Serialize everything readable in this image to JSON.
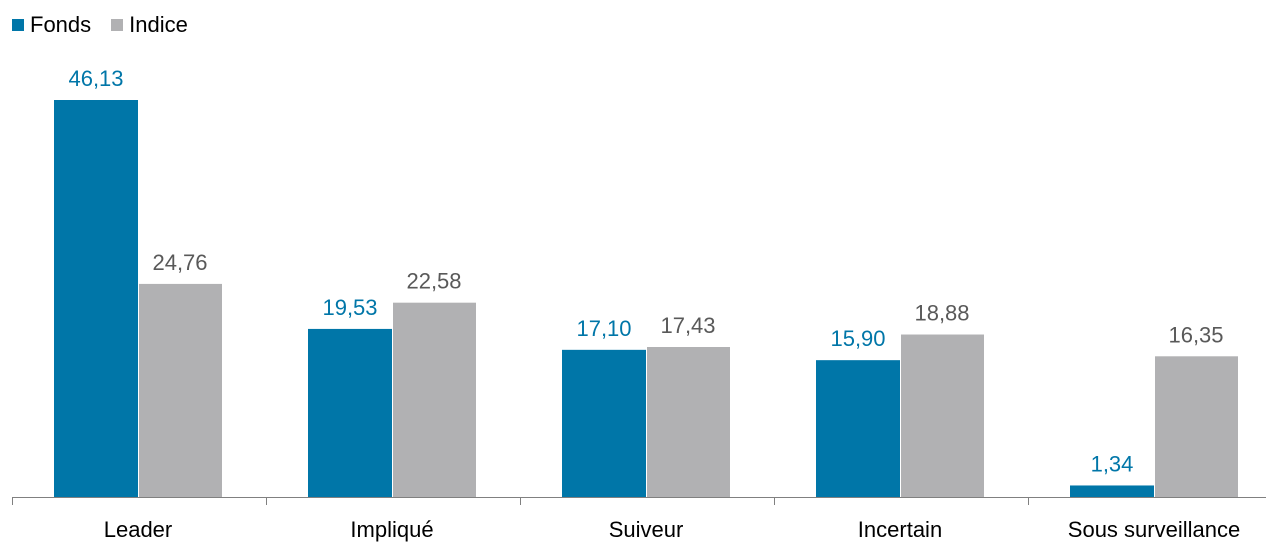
{
  "chart_data": {
    "type": "bar",
    "categories": [
      "Leader",
      "Impliqué",
      "Suiveur",
      "Incertain",
      "Sous surveillance"
    ],
    "series": [
      {
        "name": "Fonds",
        "color": "#0076A8",
        "values": [
          46.13,
          19.53,
          17.1,
          15.9,
          1.34
        ],
        "labels": [
          "46,13",
          "19,53",
          "17,10",
          "15,90",
          "1,34"
        ]
      },
      {
        "name": "Indice",
        "color": "#B1B1B3",
        "label_color": "#595959",
        "values": [
          24.76,
          22.58,
          17.43,
          18.88,
          16.35
        ],
        "labels": [
          "24,76",
          "22,58",
          "17,43",
          "18,88",
          "16,35"
        ]
      }
    ],
    "ylim": [
      0,
      46.13
    ],
    "grid": false,
    "legend_position": "top-left",
    "axis_color": "#808080"
  }
}
